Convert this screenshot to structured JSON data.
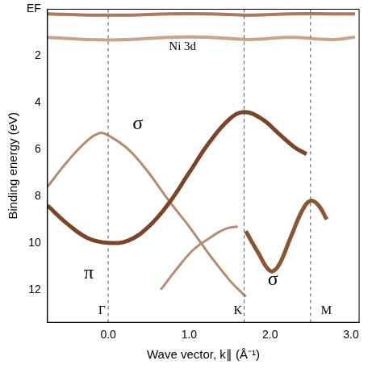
{
  "chart_data": {
    "type": "line",
    "x_label": "Wave vector, k∥ (Å⁻¹)",
    "y_label": "Binding energy (eV)",
    "xlim": [
      -0.75,
      3.1
    ],
    "xticks": [
      {
        "value": 0,
        "label": "0.0"
      },
      {
        "value": 1,
        "label": "1.0"
      },
      {
        "value": 2,
        "label": "2.0"
      },
      {
        "value": 3,
        "label": "3.0"
      }
    ],
    "ylim": [
      0,
      13.4
    ],
    "yticks": [
      {
        "value": 0,
        "label": "EF"
      },
      2,
      4,
      6,
      8,
      10,
      12
    ],
    "y_reversed": true,
    "grid": false,
    "legend": false,
    "vlines": [
      0,
      1.68,
      2.5
    ],
    "annotations": [
      {
        "text": "Ni 3d",
        "x": 0.75,
        "y": 1.6
      },
      {
        "text": "σ",
        "x": 0.3,
        "y": 4.9
      },
      {
        "text": "π",
        "x": -0.3,
        "y": 11.3
      },
      {
        "text": "σ",
        "x": 1.97,
        "y": 11.6
      },
      {
        "text": "Γ",
        "x": -0.12,
        "y": 12.9
      },
      {
        "text": "K",
        "x": 1.55,
        "y": 12.9
      },
      {
        "text": "M",
        "x": 2.63,
        "y": 12.9
      }
    ],
    "series": [
      {
        "name": "Ni 3d",
        "color": "#c9a48c",
        "line_style": "solid",
        "x": [
          -0.75,
          -0.25,
          0.25,
          0.75,
          1.25,
          1.75,
          2.25,
          2.75,
          3.05
        ],
        "values": [
          1.2,
          1.3,
          1.3,
          1.2,
          1.2,
          1.3,
          1.2,
          1.3,
          1.2
        ]
      },
      {
        "name": "Ni 3d",
        "color": "#a87a5e",
        "line_style": "solid",
        "x": [
          -0.75,
          -0.25,
          0.25,
          0.75,
          1.25,
          1.75,
          2.25,
          2.75,
          3.05
        ],
        "values": [
          0.2,
          0.25,
          0.25,
          0.2,
          0.2,
          0.25,
          0.2,
          0.2,
          0.2
        ]
      },
      {
        "name": "π",
        "color": "#7a4528",
        "line_style": "solid",
        "x": [
          -0.75,
          -0.5,
          -0.25,
          0,
          0.25,
          0.5,
          0.75,
          1.0,
          1.25,
          1.5,
          1.68,
          1.9,
          2.1,
          2.3,
          2.45
        ],
        "values": [
          8.4,
          9.2,
          9.8,
          10.0,
          9.9,
          9.3,
          8.3,
          7.0,
          5.7,
          4.7,
          4.4,
          4.7,
          5.3,
          5.9,
          6.2
        ]
      },
      {
        "name": "σ",
        "color": "#b48c74",
        "line_style": "solid",
        "x": [
          -0.75,
          -0.5,
          -0.25,
          -0.1,
          0,
          0.25,
          0.5,
          0.75,
          1.0,
          1.25,
          1.5,
          1.7
        ],
        "values": [
          7.6,
          6.5,
          5.6,
          5.3,
          5.4,
          6.0,
          7.0,
          8.2,
          9.3,
          10.5,
          11.6,
          12.3
        ]
      },
      {
        "name": "σ",
        "color": "#b48c74",
        "line_style": "solid",
        "x": [
          0.65,
          0.85,
          1.05,
          1.25,
          1.45,
          1.6
        ],
        "values": [
          12.0,
          11.1,
          10.3,
          9.8,
          9.4,
          9.3
        ]
      },
      {
        "name": "σ",
        "color": "#8a5636",
        "line_style": "solid",
        "x": [
          1.7,
          1.85,
          2.0,
          2.1,
          2.25,
          2.4,
          2.5,
          2.6,
          2.7
        ],
        "values": [
          9.5,
          10.4,
          11.2,
          11.0,
          9.8,
          8.6,
          8.2,
          8.4,
          9.0
        ]
      }
    ]
  }
}
